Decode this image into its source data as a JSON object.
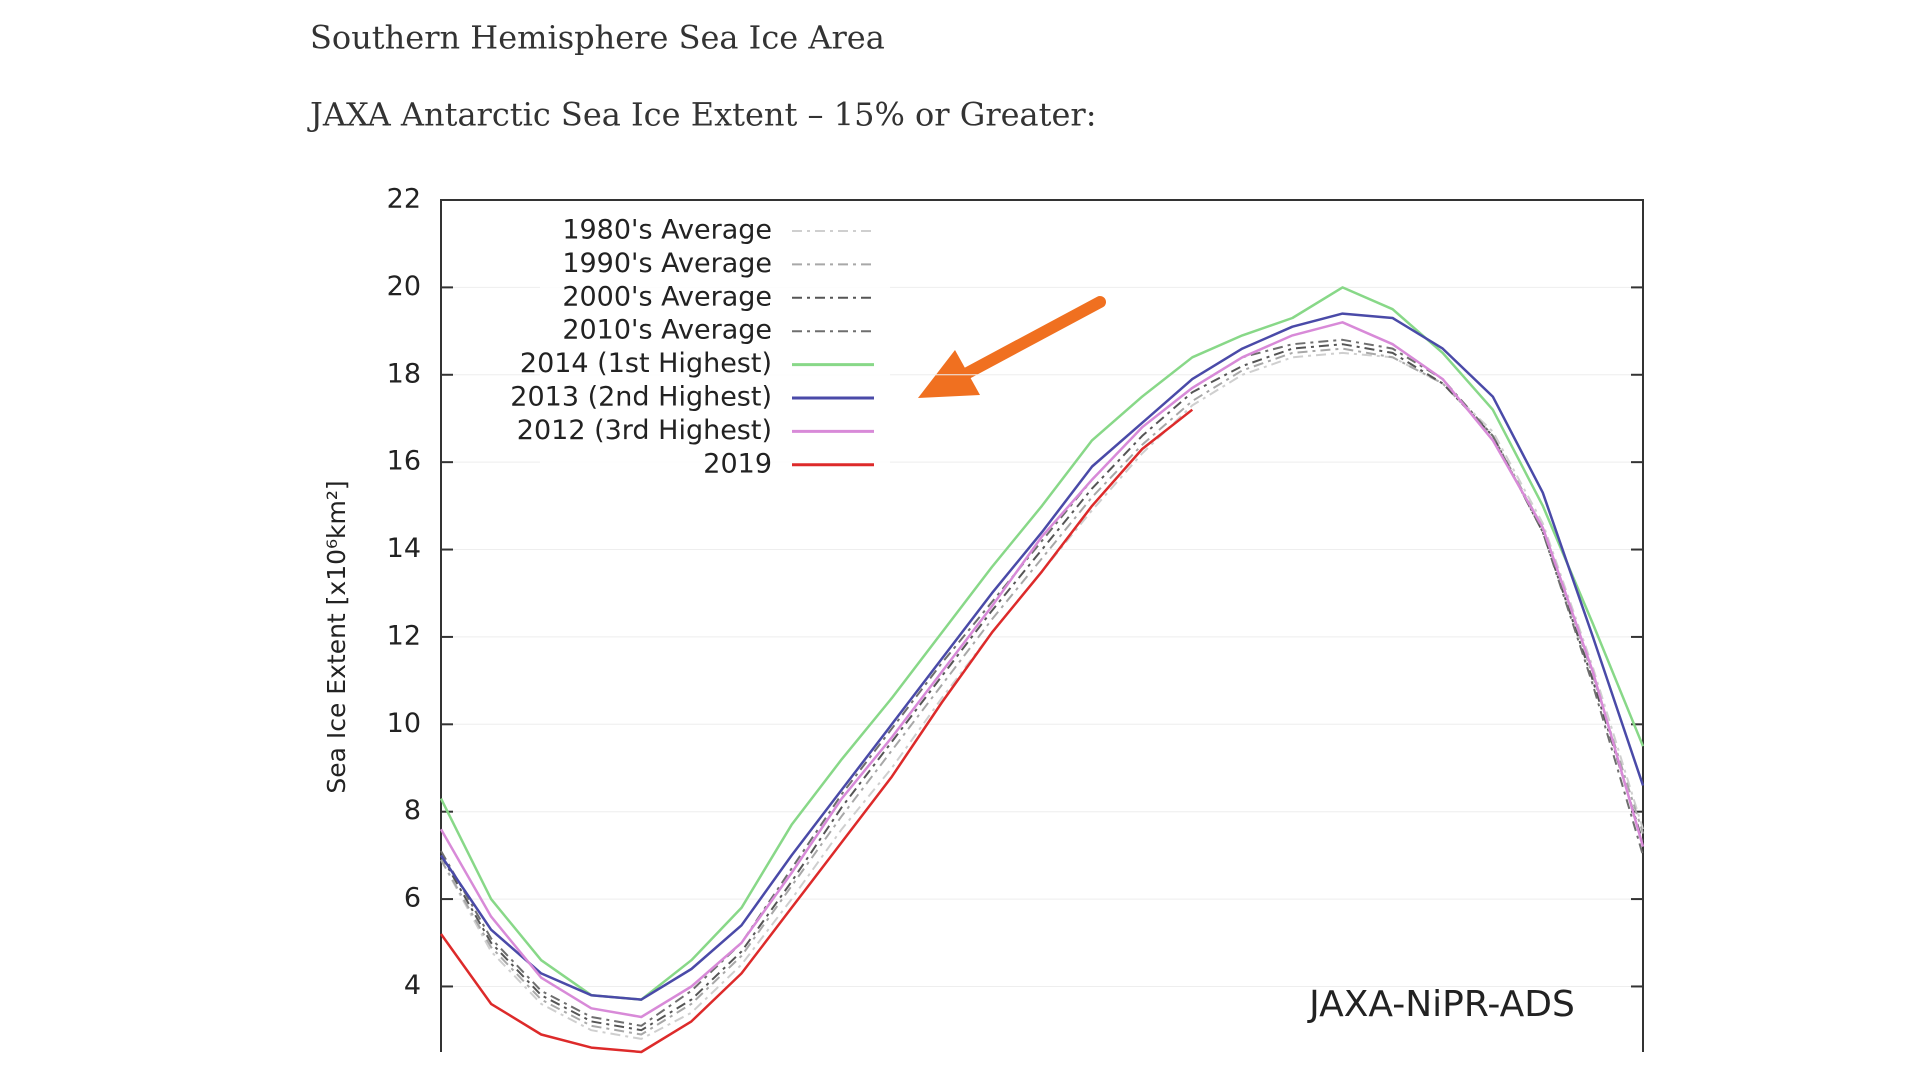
{
  "chart_data": {
    "type": "line",
    "title": "Southern Hemisphere Sea Ice Area",
    "subtitle": "JAXA Antarctic Sea Ice Extent – 15% or Greater:",
    "y_label": "Sea Ice Extent [x10⁶km²]",
    "annotation": "JAXA-NiPR-ADS",
    "categories": [
      null,
      null,
      null,
      null,
      null,
      null,
      null,
      null,
      null,
      null,
      null,
      null,
      null,
      null,
      null,
      null,
      null,
      null,
      null,
      null,
      null,
      null,
      null,
      null,
      null
    ],
    "ylim": [
      2.5,
      22
    ],
    "yticks": [
      4,
      6,
      8,
      10,
      12,
      14,
      16,
      18,
      20,
      22
    ],
    "grid": true,
    "legend": "upper left",
    "series": [
      {
        "name": "1980's Average",
        "color": "#cfcfcf",
        "dash": true,
        "values": [
          6.9,
          4.8,
          3.6,
          3.0,
          2.8,
          3.4,
          4.5,
          6.0,
          7.6,
          9.0,
          10.6,
          12.1,
          13.5,
          14.9,
          16.2,
          17.3,
          18.0,
          18.4,
          18.5,
          18.4,
          17.8,
          16.7,
          14.6,
          11.3,
          7.6
        ]
      },
      {
        "name": "1990's Average",
        "color": "#a8a8a8",
        "dash": true,
        "values": [
          6.9,
          4.9,
          3.7,
          3.1,
          2.9,
          3.6,
          4.7,
          6.3,
          7.9,
          9.4,
          10.9,
          12.4,
          13.8,
          15.2,
          16.4,
          17.4,
          18.1,
          18.5,
          18.6,
          18.4,
          17.8,
          16.6,
          14.5,
          11.1,
          7.5
        ]
      },
      {
        "name": "2000's Average",
        "color": "#555555",
        "dash": true,
        "values": [
          7.0,
          5.0,
          3.8,
          3.2,
          3.0,
          3.7,
          4.8,
          6.4,
          8.1,
          9.6,
          11.1,
          12.6,
          14.0,
          15.4,
          16.6,
          17.6,
          18.2,
          18.6,
          18.7,
          18.5,
          17.8,
          16.6,
          14.4,
          11.0,
          7.3
        ]
      },
      {
        "name": "2010's Average",
        "color": "#6e6e6e",
        "dash": true,
        "values": [
          7.1,
          5.1,
          3.9,
          3.3,
          3.1,
          3.9,
          5.0,
          6.7,
          8.4,
          9.9,
          11.4,
          12.8,
          14.2,
          15.6,
          16.8,
          17.7,
          18.4,
          18.7,
          18.8,
          18.6,
          17.9,
          16.6,
          14.4,
          10.9,
          7.0
        ]
      },
      {
        "name": "2014 (1st Highest)",
        "color": "#88d888",
        "values": [
          8.3,
          6.0,
          4.6,
          3.8,
          3.7,
          4.6,
          5.8,
          7.7,
          9.2,
          10.6,
          12.1,
          13.6,
          15.0,
          16.5,
          17.5,
          18.4,
          18.9,
          19.3,
          20.0,
          19.5,
          18.5,
          17.2,
          15.0,
          12.3,
          9.5
        ]
      },
      {
        "name": "2013 (2nd Highest)",
        "color": "#4a4aa8",
        "values": [
          7.0,
          5.3,
          4.3,
          3.8,
          3.7,
          4.4,
          5.4,
          7.0,
          8.5,
          10.0,
          11.5,
          13.0,
          14.4,
          15.9,
          16.9,
          17.9,
          18.6,
          19.1,
          19.4,
          19.3,
          18.6,
          17.5,
          15.3,
          12.0,
          8.6
        ]
      },
      {
        "name": "2012 (3rd Highest)",
        "color": "#d88ad8",
        "values": [
          7.6,
          5.6,
          4.2,
          3.5,
          3.3,
          4.0,
          5.0,
          6.6,
          8.3,
          9.7,
          11.2,
          12.7,
          14.3,
          15.6,
          16.8,
          17.7,
          18.4,
          18.9,
          19.2,
          18.7,
          17.9,
          16.5,
          14.5,
          11.2,
          7.2
        ]
      },
      {
        "name": "2019",
        "color": "#dd2a2a",
        "values": [
          5.2,
          3.6,
          2.9,
          2.6,
          2.5,
          3.2,
          4.3,
          5.8,
          7.3,
          8.8,
          10.5,
          12.1,
          13.5,
          15.0,
          16.3,
          17.2,
          null,
          null,
          null,
          null,
          null,
          null,
          null,
          null,
          null
        ]
      }
    ]
  }
}
